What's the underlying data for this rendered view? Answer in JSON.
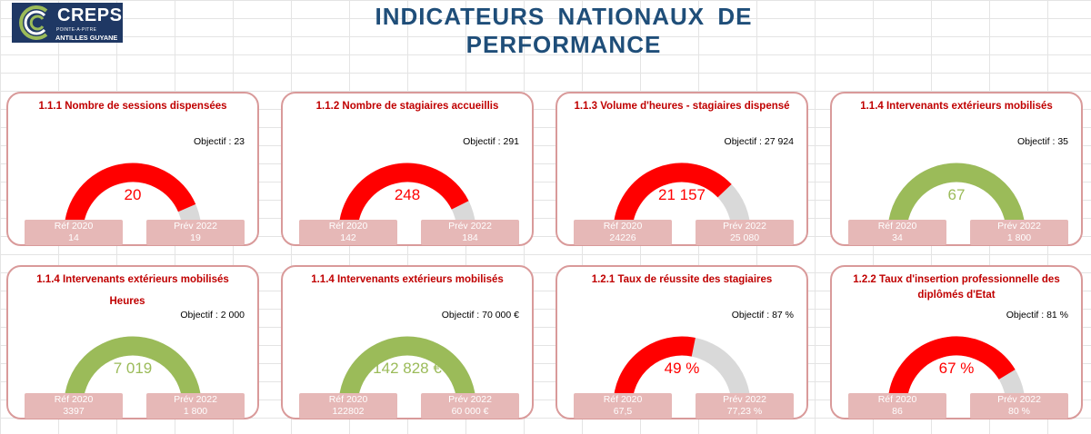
{
  "logo": {
    "brand": "CREPS",
    "sub": "POINTE-A-PITRE",
    "region": "ANTILLES GUYANE"
  },
  "title": "INDICATEURS NATIONAUX DE PERFORMANCE",
  "colors": {
    "red": "#ff0000",
    "green": "#9bbb59",
    "track": "#d9d9d9",
    "card_border": "#d99a9a",
    "pill": "#e6b8b7",
    "title": "#1f4e79"
  },
  "chart_data": [
    {
      "type": "gauge",
      "title": "1.1.1 Nombre de sessions dispensées",
      "unit_label": "",
      "value": 20,
      "value_label": "20",
      "objective": 23,
      "objective_label": "Objectif : 23",
      "ref_label": "Réf 2020",
      "ref_value": "14",
      "prev_label": "Prév 2022",
      "prev_value": "19",
      "status": "red"
    },
    {
      "type": "gauge",
      "title": "1.1.2 Nombre de stagiaires accueillis",
      "unit_label": "",
      "value": 248,
      "value_label": "248",
      "objective": 291,
      "objective_label": "Objectif : 291",
      "ref_label": "Réf 2020",
      "ref_value": "142",
      "prev_label": "Prév 2022",
      "prev_value": "184",
      "status": "red"
    },
    {
      "type": "gauge",
      "title": "1.1.3 Volume d'heures - stagiaires dispensé",
      "unit_label": "",
      "value": 21157,
      "value_label": "21 157",
      "objective": 27924,
      "objective_label": "Objectif : 27 924",
      "ref_label": "Réf 2020",
      "ref_value": "24226",
      "prev_label": "Prév 2022",
      "prev_value": "25 080",
      "status": "red"
    },
    {
      "type": "gauge",
      "title": "1.1.4 Intervenants extérieurs mobilisés",
      "unit_label": "",
      "value": 67,
      "value_label": "67",
      "objective": 35,
      "objective_label": "Objectif : 35",
      "ref_label": "Réf 2020",
      "ref_value": "34",
      "prev_label": "Prév 2022",
      "prev_value": "1 800",
      "status": "green"
    },
    {
      "type": "gauge",
      "title": "1.1.4 Intervenants extérieurs mobilisés",
      "unit_label": "Heures",
      "value": 7019,
      "value_label": "7 019",
      "objective": 2000,
      "objective_label": "Objectif : 2 000",
      "ref_label": "Réf 2020",
      "ref_value": "3397",
      "prev_label": "Prév 2022",
      "prev_value": "1 800",
      "status": "green"
    },
    {
      "type": "gauge",
      "title": "1.1.4 Intervenants extérieurs mobilisés",
      "unit_label": "",
      "value": 142828,
      "value_label": "142 828 €",
      "objective": 70000,
      "objective_label": "Objectif : 70 000 €",
      "ref_label": "Réf 2020",
      "ref_value": "122802",
      "prev_label": "Prév 2022",
      "prev_value": "60 000 €",
      "status": "green"
    },
    {
      "type": "gauge",
      "title": "1.2.1 Taux de réussite des stagiaires",
      "unit_label": "",
      "value": 49,
      "value_label": "49 %",
      "objective": 87,
      "objective_label": "Objectif : 87 %",
      "ref_label": "Réf 2020",
      "ref_value": "67,5",
      "prev_label": "Prév 2022",
      "prev_value": "77,23 %",
      "status": "red"
    },
    {
      "type": "gauge",
      "title": "1.2.2 Taux d'insertion professionnelle des diplômés d'Etat",
      "unit_label": "",
      "value": 67,
      "value_label": "67 %",
      "objective": 81,
      "objective_label": "Objectif : 81 %",
      "ref_label": "Réf 2020",
      "ref_value": "86",
      "prev_label": "Prév 2022",
      "prev_value": "80 %",
      "status": "red"
    }
  ]
}
